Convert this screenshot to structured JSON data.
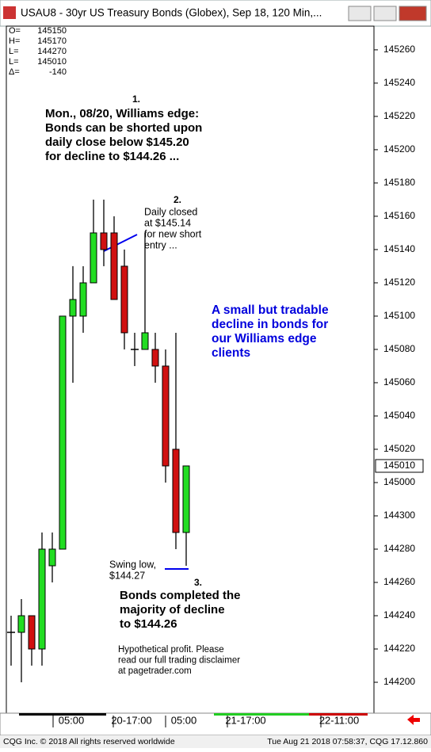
{
  "window_title": "USAU8 - 30yr US Treasury Bonds (Globex), Sep 18, 120 Min,...",
  "readout": [
    {
      "key": "O=",
      "value": "145150"
    },
    {
      "key": "H=",
      "value": "145170"
    },
    {
      "key": "L=",
      "value": "144270"
    },
    {
      "key": "L=",
      "value": "145010"
    },
    {
      "key": "Δ=",
      "value": "-140"
    }
  ],
  "chart_data": {
    "type": "candlestick",
    "ylim": [
      144.567,
      145.854
    ],
    "yticks": [
      {
        "value": 144.625,
        "label": "144200"
      },
      {
        "value": 144.6875,
        "label": "144220"
      },
      {
        "value": 144.75,
        "label": "144240"
      },
      {
        "value": 144.8125,
        "label": "144260"
      },
      {
        "value": 144.875,
        "label": "144280"
      },
      {
        "value": 144.9375,
        "label": "144300"
      },
      {
        "value": 145.0,
        "label": "145000"
      },
      {
        "value": 145.0625,
        "label": "145020"
      },
      {
        "value": 145.125,
        "label": "145040"
      },
      {
        "value": 145.1875,
        "label": "145060"
      },
      {
        "value": 145.25,
        "label": "145080"
      },
      {
        "value": 145.3125,
        "label": "145100"
      },
      {
        "value": 145.375,
        "label": "145120"
      },
      {
        "value": 145.4375,
        "label": "145140"
      },
      {
        "value": 145.5,
        "label": "145160"
      },
      {
        "value": 145.5625,
        "label": "145180"
      },
      {
        "value": 145.625,
        "label": "145200"
      },
      {
        "value": 145.6875,
        "label": "145220"
      },
      {
        "value": 145.75,
        "label": "145240"
      },
      {
        "value": 145.8125,
        "label": "145260"
      }
    ],
    "last_price": {
      "value": 145.03125,
      "label": "145010"
    },
    "up_color": "#22dd22",
    "down_color": "#d01010",
    "open": [
      144.71875,
      144.71875,
      144.75,
      144.6875,
      144.84375,
      144.875,
      145.3125,
      145.3125,
      145.375,
      145.46875,
      145.46875,
      145.40625,
      145.25,
      145.25,
      145.25,
      145.21875,
      145.0625,
      144.90625
    ],
    "high": [
      144.75,
      144.78125,
      144.75,
      144.90625,
      144.90625,
      145.3125,
      145.40625,
      145.40625,
      145.53125,
      145.53125,
      145.5,
      145.4375,
      145.28125,
      145.46875,
      145.28125,
      145.25,
      145.28125,
      145.03125
    ],
    "low": [
      144.65625,
      144.625,
      144.65625,
      144.65625,
      144.8125,
      144.875,
      145.1875,
      145.28125,
      145.375,
      145.40625,
      145.34375,
      145.25,
      145.21875,
      145.25,
      145.1875,
      145.0,
      144.875,
      144.84375
    ],
    "close": [
      144.71875,
      144.75,
      144.6875,
      144.875,
      144.875,
      145.3125,
      145.34375,
      145.375,
      145.46875,
      145.4375,
      145.34375,
      145.28125,
      145.25,
      145.28125,
      145.21875,
      145.03125,
      144.90625,
      145.03125
    ],
    "xlabels": [
      "05:00",
      "20-17:00",
      "05:00",
      "21-17:00",
      "22-11:00"
    ],
    "annotations": [
      {
        "lines": [
          "1."
        ]
      },
      {
        "lines": [
          "Mon., 08/20, Williams edge:",
          "Bonds can be shorted upon",
          "daily close below $145.20",
          "for decline to $144.26 ..."
        ]
      },
      {
        "lines": [
          "2."
        ]
      },
      {
        "lines": [
          "Daily closed",
          "at $145.14",
          "for new short",
          "entry ..."
        ]
      },
      {
        "lines": [
          "A small but tradable",
          "decline in bonds for",
          "our Williams edge",
          "clients"
        ]
      },
      {
        "lines": [
          "Swing low,",
          "$144.27"
        ]
      },
      {
        "lines": [
          "3."
        ]
      },
      {
        "lines": [
          "Bonds completed the",
          "majority of decline",
          "to $144.26"
        ]
      },
      {
        "lines": [
          "Hypothetical profit. Please",
          "read our full trading disclaimer",
          "at pagetrader.com"
        ]
      }
    ]
  },
  "footer_left": "CQG Inc. © 2018 All rights reserved worldwide",
  "footer_right": "Tue Aug 21 2018 07:58:37, CQG 17.12.860"
}
